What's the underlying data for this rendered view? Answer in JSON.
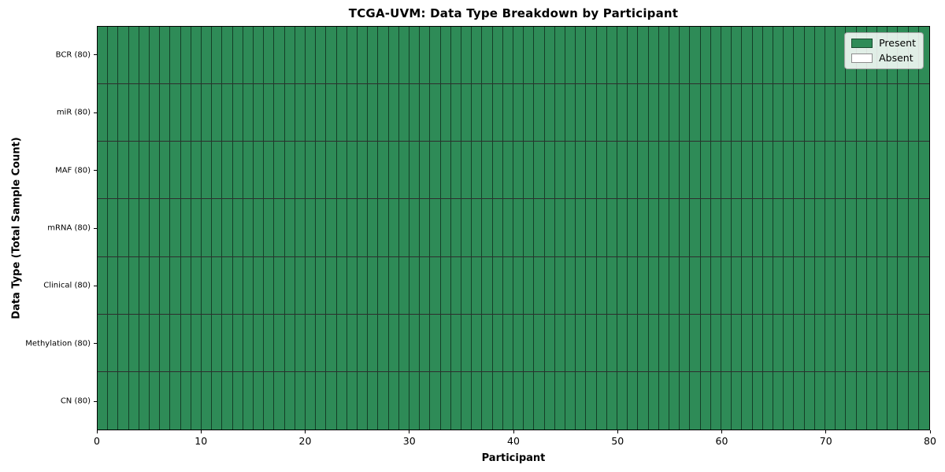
{
  "chart_data": {
    "type": "heatmap",
    "title": "TCGA-UVM: Data Type Breakdown by Participant",
    "xlabel": "Participant",
    "ylabel": "Data Type (Total Sample Count)",
    "xlim": [
      0,
      80
    ],
    "x_ticks": [
      0,
      10,
      20,
      30,
      40,
      50,
      60,
      70,
      80
    ],
    "n_participants": 80,
    "rows": [
      {
        "label": "BCR (80)",
        "present_count": 80,
        "absent_count": 0
      },
      {
        "label": "miR (80)",
        "present_count": 80,
        "absent_count": 0
      },
      {
        "label": "MAF (80)",
        "present_count": 80,
        "absent_count": 0
      },
      {
        "label": "mRNA (80)",
        "present_count": 80,
        "absent_count": 0
      },
      {
        "label": "Clinical (80)",
        "present_count": 80,
        "absent_count": 0
      },
      {
        "label": "Methylation (80)",
        "present_count": 80,
        "absent_count": 0
      },
      {
        "label": "CN (80)",
        "present_count": 80,
        "absent_count": 0
      }
    ],
    "legend": {
      "position": "upper right",
      "entries": [
        {
          "label": "Present",
          "color": "#2E8B57"
        },
        {
          "label": "Absent",
          "color": "#FFFFFF"
        }
      ]
    },
    "colors": {
      "present": "#2E8B57",
      "absent": "#FFFFFF"
    },
    "grid": "off"
  }
}
